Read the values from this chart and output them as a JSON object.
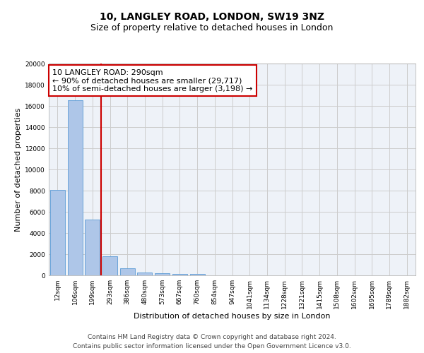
{
  "title": "10, LANGLEY ROAD, LONDON, SW19 3NZ",
  "subtitle": "Size of property relative to detached houses in London",
  "xlabel": "Distribution of detached houses by size in London",
  "ylabel": "Number of detached properties",
  "bar_color": "#aec6e8",
  "bar_edge_color": "#5b9bd5",
  "categories": [
    "12sqm",
    "106sqm",
    "199sqm",
    "293sqm",
    "386sqm",
    "480sqm",
    "573sqm",
    "667sqm",
    "760sqm",
    "854sqm",
    "947sqm",
    "1041sqm",
    "1134sqm",
    "1228sqm",
    "1321sqm",
    "1415sqm",
    "1508sqm",
    "1602sqm",
    "1695sqm",
    "1789sqm",
    "1882sqm"
  ],
  "values": [
    8100,
    16500,
    5300,
    1800,
    650,
    300,
    200,
    130,
    130,
    0,
    0,
    0,
    0,
    0,
    0,
    0,
    0,
    0,
    0,
    0,
    0
  ],
  "annotation_text": "10 LANGLEY ROAD: 290sqm\n← 90% of detached houses are smaller (29,717)\n10% of semi-detached houses are larger (3,198) →",
  "annotation_box_color": "#ffffff",
  "annotation_box_edge": "#cc0000",
  "vline_color": "#cc0000",
  "ylim": [
    0,
    20000
  ],
  "yticks": [
    0,
    2000,
    4000,
    6000,
    8000,
    10000,
    12000,
    14000,
    16000,
    18000,
    20000
  ],
  "grid_color": "#cccccc",
  "bg_color": "#eef2f8",
  "footer_line1": "Contains HM Land Registry data © Crown copyright and database right 2024.",
  "footer_line2": "Contains public sector information licensed under the Open Government Licence v3.0.",
  "title_fontsize": 10,
  "subtitle_fontsize": 9,
  "axis_label_fontsize": 8,
  "tick_fontsize": 6.5,
  "annotation_fontsize": 8,
  "footer_fontsize": 6.5
}
